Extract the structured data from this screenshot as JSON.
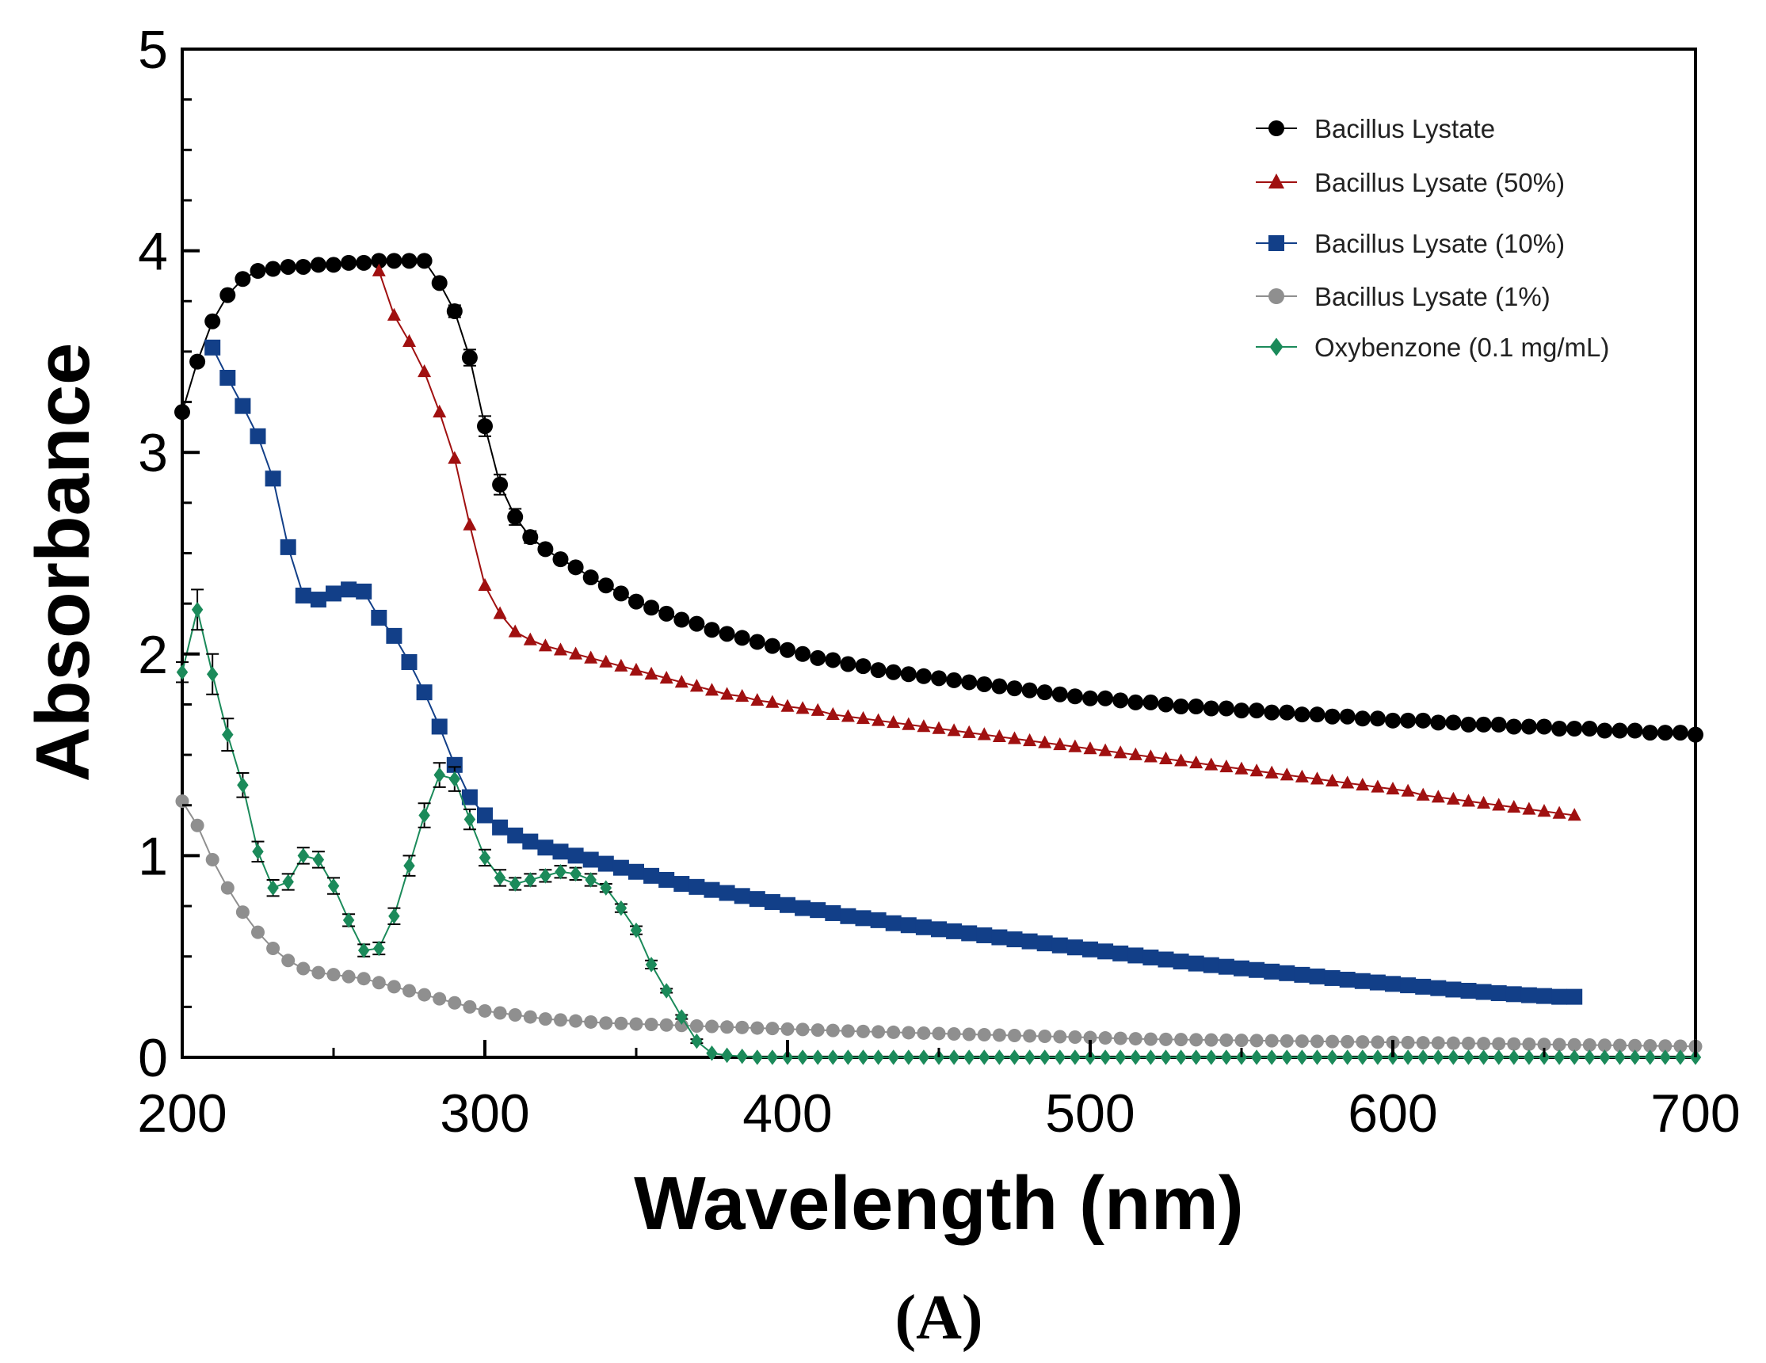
{
  "chart_data": {
    "type": "line",
    "title": "",
    "xlabel": "Wavelength (nm)",
    "ylabel": "Absorbance",
    "panel_label": "(A)",
    "xlim": [
      200,
      700
    ],
    "ylim": [
      0,
      5
    ],
    "x_ticks": [
      "200",
      "300",
      "400",
      "500",
      "600",
      "700"
    ],
    "y_ticks": [
      "0",
      "1",
      "2",
      "3",
      "4",
      "5"
    ],
    "legend_position": "top-right",
    "legend": [
      "Bacillus Lystate",
      "Bacillus Lysate (50%)",
      "Bacillus Lysate (10%)",
      "Bacillus Lysate (1%)",
      "Oxybenzone (0.1 mg/mL)"
    ],
    "series": [
      {
        "name": "Bacillus Lystate",
        "color": "#000000",
        "marker": "circle",
        "x_start": 200,
        "x_step": 5,
        "values": [
          3.2,
          3.45,
          3.65,
          3.78,
          3.86,
          3.9,
          3.91,
          3.92,
          3.92,
          3.93,
          3.93,
          3.94,
          3.94,
          3.95,
          3.95,
          3.95,
          3.95,
          3.84,
          3.7,
          3.47,
          3.13,
          2.84,
          2.68,
          2.58,
          2.52,
          2.47,
          2.43,
          2.38,
          2.34,
          2.3,
          2.26,
          2.23,
          2.2,
          2.17,
          2.15,
          2.12,
          2.1,
          2.08,
          2.06,
          2.04,
          2.02,
          2.0,
          1.98,
          1.97,
          1.95,
          1.94,
          1.92,
          1.91,
          1.9,
          1.89,
          1.88,
          1.87,
          1.86,
          1.85,
          1.84,
          1.83,
          1.82,
          1.81,
          1.8,
          1.79,
          1.78,
          1.78,
          1.77,
          1.76,
          1.76,
          1.75,
          1.74,
          1.74,
          1.73,
          1.73,
          1.72,
          1.72,
          1.71,
          1.71,
          1.7,
          1.7,
          1.69,
          1.69,
          1.68,
          1.68,
          1.67,
          1.67,
          1.67,
          1.66,
          1.66,
          1.65,
          1.65,
          1.65,
          1.64,
          1.64,
          1.64,
          1.63,
          1.63,
          1.63,
          1.62,
          1.62,
          1.62,
          1.61,
          1.61,
          1.61,
          1.6
        ],
        "error": [
          0,
          0,
          0,
          0,
          0,
          0,
          0,
          0,
          0,
          0,
          0,
          0,
          0,
          0,
          0,
          0,
          0,
          0.02,
          0.03,
          0.04,
          0.05,
          0.05,
          0.04,
          0.03,
          0.02,
          0.02,
          0.01,
          0.01,
          0,
          0,
          0,
          0,
          0,
          0,
          0,
          0,
          0,
          0,
          0,
          0,
          0,
          0,
          0,
          0,
          0,
          0,
          0,
          0,
          0,
          0,
          0,
          0,
          0,
          0,
          0,
          0,
          0,
          0,
          0,
          0,
          0,
          0,
          0,
          0,
          0,
          0,
          0,
          0,
          0,
          0,
          0,
          0,
          0,
          0,
          0,
          0,
          0,
          0,
          0,
          0,
          0,
          0,
          0,
          0,
          0,
          0,
          0,
          0,
          0,
          0,
          0,
          0,
          0,
          0,
          0,
          0,
          0,
          0,
          0,
          0,
          0
        ]
      },
      {
        "name": "Bacillus Lysate (50%)",
        "color": "#a01010",
        "marker": "triangle",
        "x_start": 265,
        "x_step": 5,
        "values": [
          3.9,
          3.68,
          3.55,
          3.4,
          3.2,
          2.97,
          2.64,
          2.34,
          2.2,
          2.11,
          2.07,
          2.04,
          2.02,
          2.0,
          1.98,
          1.96,
          1.94,
          1.92,
          1.9,
          1.88,
          1.86,
          1.84,
          1.82,
          1.8,
          1.79,
          1.77,
          1.76,
          1.74,
          1.73,
          1.72,
          1.7,
          1.69,
          1.68,
          1.67,
          1.66,
          1.65,
          1.64,
          1.63,
          1.62,
          1.61,
          1.6,
          1.59,
          1.58,
          1.57,
          1.56,
          1.55,
          1.54,
          1.53,
          1.52,
          1.51,
          1.5,
          1.49,
          1.48,
          1.47,
          1.46,
          1.45,
          1.44,
          1.43,
          1.42,
          1.41,
          1.4,
          1.39,
          1.38,
          1.37,
          1.36,
          1.35,
          1.34,
          1.33,
          1.32,
          1.3,
          1.29,
          1.28,
          1.27,
          1.26,
          1.25,
          1.24,
          1.23,
          1.22,
          1.21,
          1.2
        ]
      },
      {
        "name": "Bacillus Lysate (10%)",
        "color": "#123f88",
        "marker": "square",
        "x_start": 210,
        "x_step": 5,
        "values": [
          3.52,
          3.37,
          3.23,
          3.08,
          2.87,
          2.53,
          2.29,
          2.27,
          2.3,
          2.32,
          2.31,
          2.18,
          2.09,
          1.96,
          1.81,
          1.64,
          1.45,
          1.29,
          1.2,
          1.14,
          1.1,
          1.07,
          1.04,
          1.02,
          1.0,
          0.98,
          0.96,
          0.94,
          0.92,
          0.9,
          0.88,
          0.86,
          0.845,
          0.83,
          0.815,
          0.8,
          0.785,
          0.77,
          0.755,
          0.74,
          0.73,
          0.715,
          0.7,
          0.69,
          0.68,
          0.665,
          0.655,
          0.645,
          0.635,
          0.625,
          0.615,
          0.605,
          0.595,
          0.585,
          0.575,
          0.565,
          0.555,
          0.545,
          0.535,
          0.525,
          0.515,
          0.505,
          0.495,
          0.485,
          0.475,
          0.465,
          0.457,
          0.449,
          0.441,
          0.433,
          0.425,
          0.417,
          0.409,
          0.401,
          0.393,
          0.385,
          0.378,
          0.371,
          0.364,
          0.357,
          0.35,
          0.343,
          0.336,
          0.33,
          0.324,
          0.318,
          0.313,
          0.308,
          0.304,
          0.3,
          0.3
        ]
      },
      {
        "name": "Bacillus Lysate (1%)",
        "color": "#8f8f8f",
        "marker": "circle",
        "x_start": 200,
        "x_step": 5,
        "values": [
          1.27,
          1.15,
          0.98,
          0.84,
          0.72,
          0.62,
          0.54,
          0.48,
          0.44,
          0.42,
          0.41,
          0.4,
          0.39,
          0.37,
          0.35,
          0.33,
          0.31,
          0.29,
          0.27,
          0.25,
          0.23,
          0.22,
          0.21,
          0.2,
          0.19,
          0.185,
          0.18,
          0.175,
          0.17,
          0.168,
          0.165,
          0.163,
          0.16,
          0.158,
          0.155,
          0.153,
          0.15,
          0.148,
          0.145,
          0.143,
          0.14,
          0.138,
          0.135,
          0.133,
          0.13,
          0.128,
          0.126,
          0.124,
          0.122,
          0.12,
          0.118,
          0.116,
          0.114,
          0.112,
          0.11,
          0.108,
          0.106,
          0.104,
          0.102,
          0.1,
          0.098,
          0.096,
          0.094,
          0.092,
          0.09,
          0.089,
          0.088,
          0.087,
          0.086,
          0.085,
          0.084,
          0.083,
          0.082,
          0.081,
          0.08,
          0.079,
          0.078,
          0.077,
          0.076,
          0.075,
          0.074,
          0.073,
          0.072,
          0.071,
          0.07,
          0.069,
          0.068,
          0.067,
          0.066,
          0.065,
          0.064,
          0.063,
          0.062,
          0.061,
          0.06,
          0.059,
          0.058,
          0.057,
          0.056,
          0.055,
          0.054
        ]
      },
      {
        "name": "Oxybenzone (0.1 mg/mL)",
        "color": "#1b8a5a",
        "marker": "diamond",
        "x_start": 200,
        "x_step": 5,
        "values": [
          1.91,
          2.22,
          1.9,
          1.6,
          1.35,
          1.02,
          0.84,
          0.87,
          1.0,
          0.98,
          0.85,
          0.68,
          0.53,
          0.54,
          0.7,
          0.95,
          1.2,
          1.4,
          1.38,
          1.18,
          0.99,
          0.89,
          0.86,
          0.88,
          0.9,
          0.92,
          0.91,
          0.88,
          0.84,
          0.74,
          0.63,
          0.46,
          0.33,
          0.2,
          0.08,
          0.02,
          0.01,
          0.005,
          0.0,
          0.0,
          0.0,
          0.0,
          0.0,
          0.0,
          0.0,
          0.0,
          0.0,
          0.0,
          0.0,
          0.0,
          0.0,
          0.0,
          0.0,
          0.0,
          0.0,
          0.0,
          0.0,
          0.0,
          0.0,
          0.0,
          0.0,
          0.0,
          0.0,
          0.0,
          0.0,
          0.0,
          0.0,
          0.0,
          0.0,
          0.0,
          0.0,
          0.0,
          0.0,
          0.0,
          0.0,
          0.0,
          0.0,
          0.0,
          0.0,
          0.0,
          0.0,
          0.0,
          0.0,
          0.0,
          0.0,
          0.0,
          0.0,
          0.0,
          0.0,
          0.0,
          0.0,
          0.0,
          0.0,
          0.0,
          0.0,
          0.0,
          0.0,
          0.0,
          0.0,
          0.0,
          0.0
        ],
        "error": [
          0.05,
          0.1,
          0.1,
          0.08,
          0.06,
          0.05,
          0.04,
          0.04,
          0.04,
          0.04,
          0.04,
          0.03,
          0.03,
          0.03,
          0.04,
          0.05,
          0.06,
          0.06,
          0.06,
          0.05,
          0.04,
          0.04,
          0.03,
          0.03,
          0.03,
          0.03,
          0.03,
          0.03,
          0.02,
          0.02,
          0.02,
          0.02,
          0.01,
          0.01,
          0.01,
          0,
          0,
          0,
          0,
          0,
          0,
          0,
          0,
          0,
          0,
          0,
          0,
          0,
          0,
          0,
          0,
          0,
          0,
          0,
          0,
          0,
          0,
          0,
          0,
          0,
          0,
          0,
          0,
          0,
          0,
          0,
          0,
          0,
          0,
          0,
          0,
          0,
          0,
          0,
          0,
          0,
          0,
          0,
          0,
          0,
          0,
          0,
          0,
          0,
          0,
          0,
          0,
          0,
          0,
          0,
          0,
          0,
          0,
          0,
          0,
          0,
          0,
          0,
          0,
          0,
          0
        ]
      }
    ]
  }
}
